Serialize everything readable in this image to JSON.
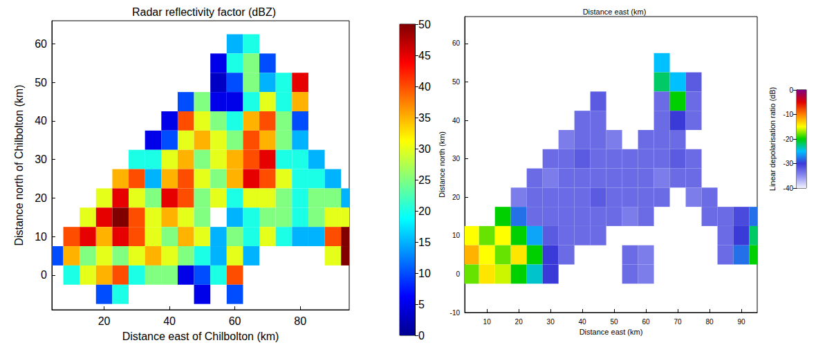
{
  "chart_data": [
    {
      "type": "heatmap",
      "title": "Radar reflectivity factor (dBZ)",
      "x_label": "Distance east of Chilbolton (km)",
      "y_label": "Distance north of Chilbolton (km)",
      "xlim": [
        4,
        95
      ],
      "ylim": [
        -9,
        66
      ],
      "xticks": [
        20,
        40,
        60,
        80
      ],
      "yticks": [
        0,
        10,
        20,
        30,
        40,
        50,
        60
      ],
      "x": [
        5,
        10,
        15,
        20,
        25,
        30,
        35,
        40,
        45,
        50,
        55,
        60,
        65,
        70,
        75,
        80,
        85,
        90,
        95
      ],
      "y": [
        60,
        55,
        50,
        45,
        40,
        35,
        30,
        25,
        20,
        15,
        10,
        5,
        0,
        -5
      ],
      "cells": [
        [
          null,
          null,
          null,
          null,
          null,
          null,
          null,
          null,
          null,
          null,
          null,
          15,
          20,
          null,
          null,
          null,
          null,
          null,
          null
        ],
        [
          null,
          null,
          null,
          null,
          null,
          null,
          null,
          null,
          null,
          null,
          5,
          20,
          25,
          10,
          null,
          null,
          null,
          null,
          null
        ],
        [
          null,
          null,
          null,
          null,
          null,
          null,
          null,
          null,
          null,
          null,
          3,
          10,
          25,
          15,
          20,
          45,
          null,
          null,
          null
        ],
        [
          null,
          null,
          null,
          null,
          null,
          null,
          null,
          null,
          10,
          25,
          5,
          5,
          20,
          30,
          20,
          35,
          null,
          null,
          null
        ],
        [
          null,
          null,
          null,
          null,
          null,
          null,
          null,
          5,
          40,
          30,
          25,
          20,
          35,
          40,
          25,
          10,
          null,
          null,
          null
        ],
        [
          null,
          null,
          null,
          null,
          null,
          null,
          5,
          10,
          30,
          35,
          30,
          25,
          40,
          35,
          25,
          15,
          null,
          null,
          null
        ],
        [
          null,
          null,
          null,
          null,
          null,
          20,
          20,
          30,
          35,
          25,
          30,
          35,
          40,
          45,
          20,
          20,
          15,
          null,
          null
        ],
        [
          null,
          null,
          null,
          null,
          35,
          40,
          15,
          35,
          40,
          30,
          25,
          35,
          45,
          40,
          30,
          20,
          20,
          15,
          null
        ],
        [
          null,
          null,
          null,
          30,
          45,
          30,
          25,
          45,
          40,
          25,
          30,
          20,
          30,
          30,
          25,
          20,
          25,
          25,
          15
        ],
        [
          null,
          null,
          30,
          45,
          50,
          40,
          30,
          35,
          30,
          25,
          null,
          15,
          20,
          25,
          25,
          20,
          25,
          30,
          30
        ],
        [
          null,
          40,
          45,
          35,
          45,
          40,
          30,
          25,
          35,
          30,
          15,
          25,
          20,
          30,
          20,
          15,
          15,
          40,
          50
        ],
        [
          10,
          35,
          25,
          30,
          25,
          30,
          35,
          30,
          25,
          20,
          15,
          30,
          15,
          null,
          null,
          null,
          null,
          30,
          50
        ],
        [
          null,
          20,
          30,
          35,
          40,
          20,
          25,
          25,
          5,
          10,
          20,
          40,
          null,
          null,
          null,
          null,
          null,
          null,
          null
        ],
        [
          null,
          null,
          null,
          10,
          20,
          null,
          null,
          null,
          null,
          5,
          null,
          10,
          null,
          null,
          null,
          null,
          null,
          null,
          null
        ]
      ],
      "colorbar": {
        "range": [
          0,
          50
        ],
        "ticks": [
          0,
          5,
          10,
          15,
          20,
          25,
          30,
          35,
          40,
          45,
          50
        ],
        "colors": [
          "#00008f",
          "#0000ff",
          "#0080ff",
          "#00ffff",
          "#80ff80",
          "#ffff00",
          "#ff8000",
          "#ff0000",
          "#800000"
        ]
      }
    },
    {
      "type": "heatmap",
      "title": "Distance east (km)",
      "x_label": "Distance east (km)",
      "y_label": "Distance north (km)",
      "xlim": [
        3,
        95
      ],
      "ylim": [
        -10,
        67
      ],
      "xticks": [
        10,
        20,
        30,
        40,
        50,
        60,
        70,
        80,
        90
      ],
      "yticks": [
        -10,
        0,
        10,
        20,
        30,
        40,
        50,
        60
      ],
      "x": [
        5,
        10,
        15,
        20,
        25,
        30,
        35,
        40,
        45,
        50,
        55,
        60,
        65,
        70,
        75,
        80,
        85,
        90,
        95
      ],
      "y": [
        60,
        55,
        50,
        45,
        40,
        35,
        30,
        25,
        20,
        15,
        10,
        5,
        0,
        -5
      ],
      "cells": [
        [
          null,
          null,
          null,
          null,
          null,
          null,
          null,
          null,
          null,
          null,
          null,
          null,
          null,
          null,
          null,
          null,
          null,
          null,
          null
        ],
        [
          null,
          null,
          null,
          null,
          null,
          null,
          null,
          null,
          null,
          null,
          null,
          null,
          -25,
          null,
          null,
          null,
          null,
          null,
          null
        ],
        [
          null,
          null,
          null,
          null,
          null,
          null,
          null,
          null,
          null,
          null,
          null,
          null,
          -22,
          -25,
          -32,
          null,
          null,
          null,
          null
        ],
        [
          null,
          null,
          null,
          null,
          null,
          null,
          null,
          null,
          -32,
          null,
          null,
          null,
          -33,
          -20,
          -33,
          null,
          null,
          null,
          null
        ],
        [
          null,
          null,
          null,
          null,
          null,
          null,
          null,
          -33,
          -33,
          null,
          null,
          null,
          -33,
          -30,
          -33,
          null,
          null,
          null,
          null
        ],
        [
          null,
          null,
          null,
          null,
          null,
          null,
          -34,
          -33,
          -33,
          -34,
          null,
          -33,
          -33,
          -33,
          null,
          null,
          null,
          null,
          null
        ],
        [
          null,
          null,
          null,
          null,
          null,
          -33,
          -33,
          -32,
          -33,
          -33,
          -33,
          -33,
          -33,
          -32,
          -33,
          null,
          null,
          null,
          null
        ],
        [
          null,
          null,
          null,
          null,
          -33,
          -34,
          -33,
          -33,
          -33,
          -33,
          -33,
          -33,
          -34,
          -33,
          -33,
          null,
          null,
          null,
          null
        ],
        [
          null,
          null,
          null,
          -34,
          -33,
          -33,
          -33,
          -33,
          -32,
          -33,
          -33,
          -33,
          -33,
          null,
          -34,
          -33,
          null,
          null,
          null
        ],
        [
          null,
          null,
          -20,
          -28,
          -33,
          -33,
          -33,
          -33,
          -33,
          -33,
          -34,
          -33,
          null,
          null,
          null,
          -33,
          -33,
          -31,
          -28
        ],
        [
          -15,
          -18,
          -15,
          -20,
          -26,
          -32,
          -33,
          -33,
          -33,
          null,
          null,
          null,
          null,
          null,
          null,
          null,
          -33,
          -30,
          -22
        ],
        [
          -12,
          -15,
          -18,
          -14,
          -20,
          -30,
          -33,
          null,
          null,
          null,
          -33,
          -34,
          null,
          null,
          null,
          null,
          -33,
          -28,
          -20
        ],
        [
          -18,
          -14,
          -16,
          -20,
          -24,
          -30,
          null,
          null,
          null,
          null,
          -33,
          -34,
          null,
          null,
          null,
          null,
          null,
          null,
          null
        ],
        [
          null,
          null,
          null,
          null,
          null,
          null,
          null,
          null,
          null,
          null,
          null,
          null,
          null,
          null,
          null,
          null,
          null,
          null,
          null
        ]
      ],
      "colorbar": {
        "range": [
          -40,
          0
        ],
        "ticks": [
          -40,
          -30,
          -20,
          -10,
          0
        ],
        "label": "Linear depolarisation ratio (dB)",
        "colors": [
          "#f2f2ff",
          "#8c8cf0",
          "#3a3ad8",
          "#00c0ff",
          "#00d000",
          "#ffff00",
          "#ff8000",
          "#e00000",
          "#800080"
        ]
      }
    }
  ]
}
